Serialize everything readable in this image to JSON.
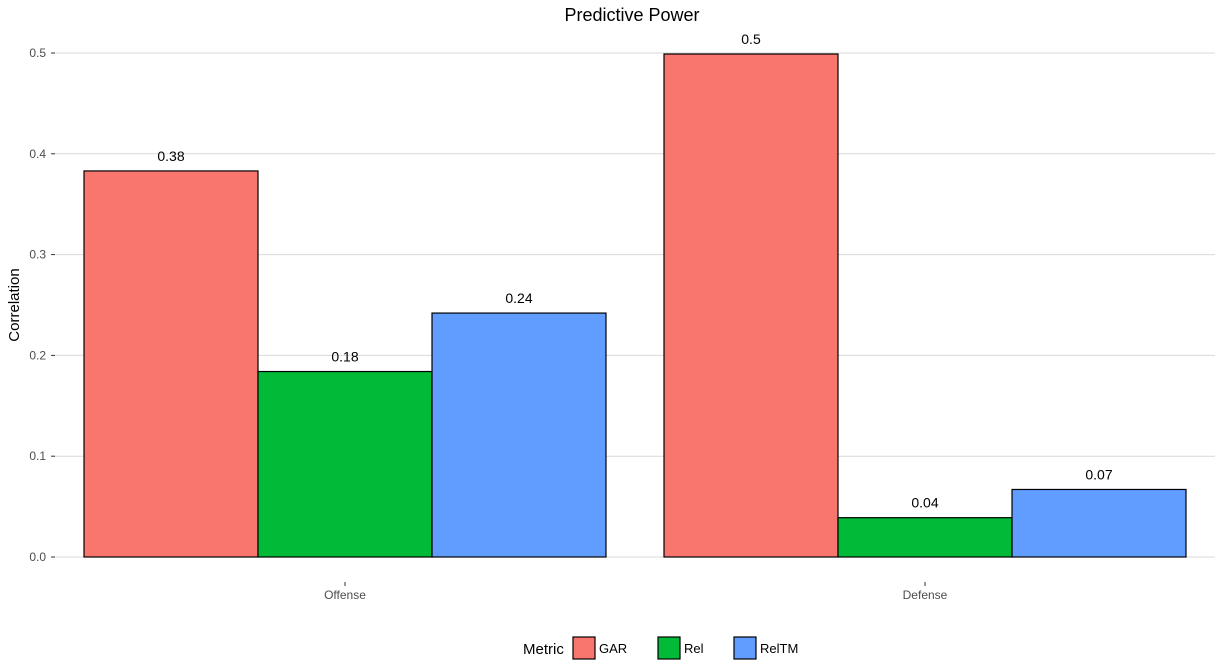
{
  "chart_data": {
    "type": "bar",
    "title": "Predictive Power",
    "xlabel": "",
    "ylabel": "Correlation",
    "categories": [
      "Offense",
      "Defense"
    ],
    "series": [
      {
        "name": "GAR",
        "color": "#F8766D",
        "values": [
          0.383,
          0.499
        ],
        "labels": [
          "0.38",
          "0.5"
        ]
      },
      {
        "name": "Rel",
        "color": "#00BA38",
        "values": [
          0.184,
          0.039
        ],
        "labels": [
          "0.18",
          "0.04"
        ]
      },
      {
        "name": "RelTM",
        "color": "#619CFF",
        "values": [
          0.242,
          0.067
        ],
        "labels": [
          "0.24",
          "0.07"
        ]
      }
    ],
    "ylim": [
      0,
      0.5
    ],
    "yticks": [
      0.0,
      0.1,
      0.2,
      0.3,
      0.4,
      0.5
    ],
    "ytick_labels": [
      "0.0",
      "0.1",
      "0.2",
      "0.3",
      "0.4",
      "0.5"
    ],
    "grid": "horizontal",
    "legend": {
      "title": "Metric",
      "position": "bottom"
    }
  }
}
